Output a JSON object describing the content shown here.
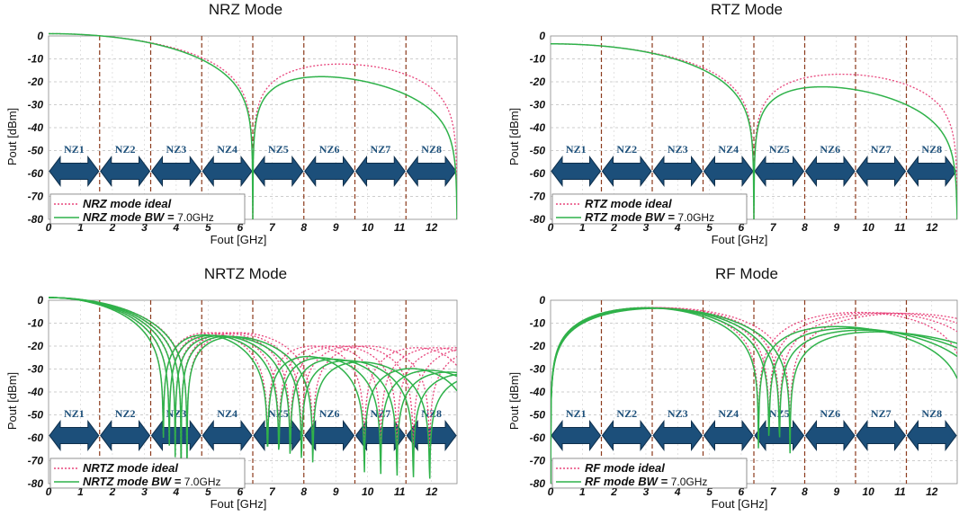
{
  "chart_data": [
    {
      "type": "line",
      "title": "NRZ Mode",
      "mode": "NRZ",
      "xlabel": "Fout  [GHz]",
      "ylabel": "Pout [dBm]",
      "xlim": [
        0,
        12.8
      ],
      "ylim": [
        -80,
        0
      ],
      "xticks": [
        "0",
        "1",
        "2",
        "3",
        "4",
        "5",
        "6",
        "7",
        "8",
        "9",
        "10",
        "11",
        "12"
      ],
      "yticks": [
        "0",
        "-10",
        "-20",
        "-30",
        "-40",
        "-50",
        "-60",
        "-70",
        "-80"
      ],
      "nyquist_boundaries_ghz": [
        1.6,
        3.2,
        4.8,
        6.4,
        8.0,
        9.6,
        11.2
      ],
      "nyquist_zones": [
        "NZ1",
        "NZ2",
        "NZ3",
        "NZ4",
        "NZ5",
        "NZ6",
        "NZ7",
        "NZ8"
      ],
      "grid": true,
      "legend_placement": "bottom-left",
      "series": [
        {
          "name": "NRZ mode ideal",
          "style": "dotted",
          "color": "#e8467c",
          "peak_dbm": 1.0,
          "dips_ghz": [
            3.2,
            6.4,
            9.6,
            12.8
          ],
          "lobe_peaks_dbm": [
            -13,
            -17,
            -20
          ]
        },
        {
          "name": "NRZ mode BW = 7.0GHz",
          "style": "solid",
          "color": "#2fb24a",
          "peak_dbm": 1.0,
          "dips_ghz": [
            3.2,
            6.4,
            9.6,
            12.8
          ],
          "lobe_peaks_dbm": [
            -14,
            -20,
            -24
          ]
        }
      ]
    },
    {
      "type": "line",
      "title": "RTZ Mode",
      "mode": "RTZ",
      "xlabel": "Fout  [GHz]",
      "ylabel": "Pout [dBm]",
      "xlim": [
        0,
        12.8
      ],
      "ylim": [
        -80,
        0
      ],
      "xticks": [
        "0",
        "1",
        "2",
        "3",
        "4",
        "5",
        "6",
        "7",
        "8",
        "9",
        "10",
        "11",
        "12"
      ],
      "yticks": [
        "0",
        "-10",
        "-20",
        "-30",
        "-40",
        "-50",
        "-60",
        "-70",
        "-80"
      ],
      "nyquist_boundaries_ghz": [
        1.6,
        3.2,
        4.8,
        6.4,
        8.0,
        9.6,
        11.2
      ],
      "nyquist_zones": [
        "NZ1",
        "NZ2",
        "NZ3",
        "NZ4",
        "NZ5",
        "NZ6",
        "NZ7",
        "NZ8"
      ],
      "grid": true,
      "legend_placement": "bottom-left",
      "series": [
        {
          "name": "RTZ mode ideal",
          "style": "dotted",
          "color": "#e8467c",
          "start_dbm": -4.5,
          "dips_ghz": [
            6.4,
            12.8
          ],
          "lobe_peaks_dbm": [
            -18
          ]
        },
        {
          "name": "RTZ mode BW = 7.0GHz",
          "style": "solid",
          "color": "#2fb24a",
          "start_dbm": -4.5,
          "dips_ghz": [
            6.4,
            12.8
          ],
          "lobe_peaks_dbm": [
            -21
          ]
        }
      ]
    },
    {
      "type": "line",
      "title": "NRTZ Mode",
      "mode": "NRTZ",
      "xlabel": "Fout  [GHz]",
      "ylabel": "Pout [dBm]",
      "xlim": [
        0,
        12.8
      ],
      "ylim": [
        -80,
        0
      ],
      "xticks": [
        "0",
        "1",
        "2",
        "3",
        "4",
        "5",
        "6",
        "7",
        "8",
        "9",
        "10",
        "11",
        "12"
      ],
      "yticks": [
        "0",
        "-10",
        "-20",
        "-30",
        "-40",
        "-50",
        "-60",
        "-70",
        "-80"
      ],
      "nyquist_boundaries_ghz": [
        1.6,
        3.2,
        4.8,
        6.4,
        8.0,
        9.6,
        11.2
      ],
      "nyquist_zones": [
        "NZ1",
        "NZ2",
        "NZ3",
        "NZ4",
        "NZ5",
        "NZ6",
        "NZ7",
        "NZ8"
      ],
      "grid": true,
      "legend_placement": "bottom-left",
      "curve_family_first_null_ghz": [
        3.7,
        3.9,
        4.1,
        4.3,
        4.5
      ],
      "series": [
        {
          "name": "NRTZ mode ideal",
          "style": "dotted",
          "color": "#e8467c",
          "start_dbm": 0,
          "lobe_peaks_dbm": [
            -14,
            -18,
            -20
          ]
        },
        {
          "name": "NRTZ mode BW = 7.0GHz",
          "style": "solid",
          "color": "#2fb24a",
          "start_dbm": 0,
          "lobe_peaks_dbm": [
            -16,
            -21,
            -24
          ]
        }
      ]
    },
    {
      "type": "line",
      "title": "RF Mode",
      "mode": "RF",
      "xlabel": "Fout  [GHz]",
      "ylabel": "Pout [dBm]",
      "xlim": [
        0,
        12.8
      ],
      "ylim": [
        -80,
        0
      ],
      "xticks": [
        "0",
        "1",
        "2",
        "3",
        "4",
        "5",
        "6",
        "7",
        "8",
        "9",
        "10",
        "11",
        "12"
      ],
      "yticks": [
        "0",
        "-10",
        "-20",
        "-30",
        "-40",
        "-50",
        "-60",
        "-70",
        "-80"
      ],
      "nyquist_boundaries_ghz": [
        1.6,
        3.2,
        4.8,
        6.4,
        8.0,
        9.6,
        11.2
      ],
      "nyquist_zones": [
        "NZ1",
        "NZ2",
        "NZ3",
        "NZ4",
        "NZ5",
        "NZ6",
        "NZ7",
        "NZ8"
      ],
      "grid": true,
      "legend_placement": "bottom-left",
      "curve_family_null_ghz": [
        6.9,
        7.1,
        7.3,
        7.5
      ],
      "series": [
        {
          "name": "RF mode ideal",
          "style": "dotted",
          "color": "#e8467c",
          "peak_dbm": -3,
          "peak_ghz": 2.5,
          "lobe_peaks_dbm": [
            -13
          ]
        },
        {
          "name": "RF mode BW = 7.0GHz",
          "style": "solid",
          "color": "#2fb24a",
          "peak_dbm": -3,
          "peak_ghz": 2.5,
          "lobe_peaks_dbm": [
            -17
          ]
        }
      ]
    }
  ]
}
